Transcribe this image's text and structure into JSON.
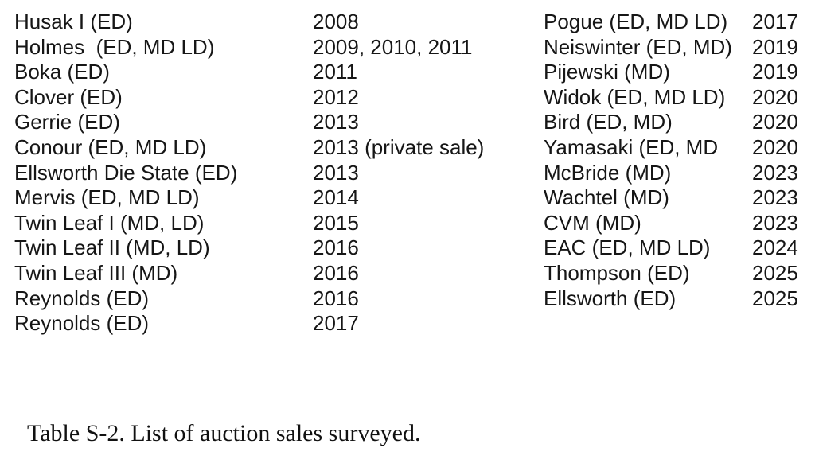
{
  "colors": {
    "background": "#ffffff",
    "text": "#161616"
  },
  "caption": "Table S-2. List of auction sales surveyed.",
  "table": {
    "left": [
      {
        "name": "Husak I (ED)",
        "years": "2008"
      },
      {
        "name": "Holmes  (ED, MD LD)",
        "years": "2009, 2010, 2011"
      },
      {
        "name": "Boka (ED)",
        "years": "2011"
      },
      {
        "name": "Clover (ED)",
        "years": "2012"
      },
      {
        "name": "Gerrie (ED)",
        "years": "2013"
      },
      {
        "name": "Conour (ED, MD LD)",
        "years": "2013 (private sale)"
      },
      {
        "name": "Ellsworth Die State (ED)",
        "years": "2013"
      },
      {
        "name": "Mervis (ED, MD LD)",
        "years": "2014"
      },
      {
        "name": "Twin Leaf I (MD, LD)",
        "years": "2015"
      },
      {
        "name": "Twin Leaf II (MD, LD)",
        "years": "2016"
      },
      {
        "name": "Twin Leaf III (MD)",
        "years": "2016"
      },
      {
        "name": "Reynolds (ED)",
        "years": "2016"
      },
      {
        "name": "Reynolds (ED)",
        "years": "2017"
      }
    ],
    "right": [
      {
        "name": "Pogue (ED, MD LD)",
        "year": "2017"
      },
      {
        "name": "Neiswinter (ED, MD)",
        "year": "2019"
      },
      {
        "name": "Pijewski (MD)",
        "year": "2019"
      },
      {
        "name": "Widok (ED, MD LD)",
        "year": "2020"
      },
      {
        "name": "Bird (ED, MD)",
        "year": "2020"
      },
      {
        "name": "Yamasaki (ED, MD",
        "year": "2020"
      },
      {
        "name": "McBride (MD)",
        "year": "2023"
      },
      {
        "name": "Wachtel (MD)",
        "year": "2023"
      },
      {
        "name": "CVM (MD)",
        "year": "2023"
      },
      {
        "name": "EAC (ED, MD LD)",
        "year": "2024"
      },
      {
        "name": "Thompson (ED)",
        "year": "2025"
      },
      {
        "name": "Ellsworth (ED)",
        "year": "2025"
      }
    ]
  }
}
